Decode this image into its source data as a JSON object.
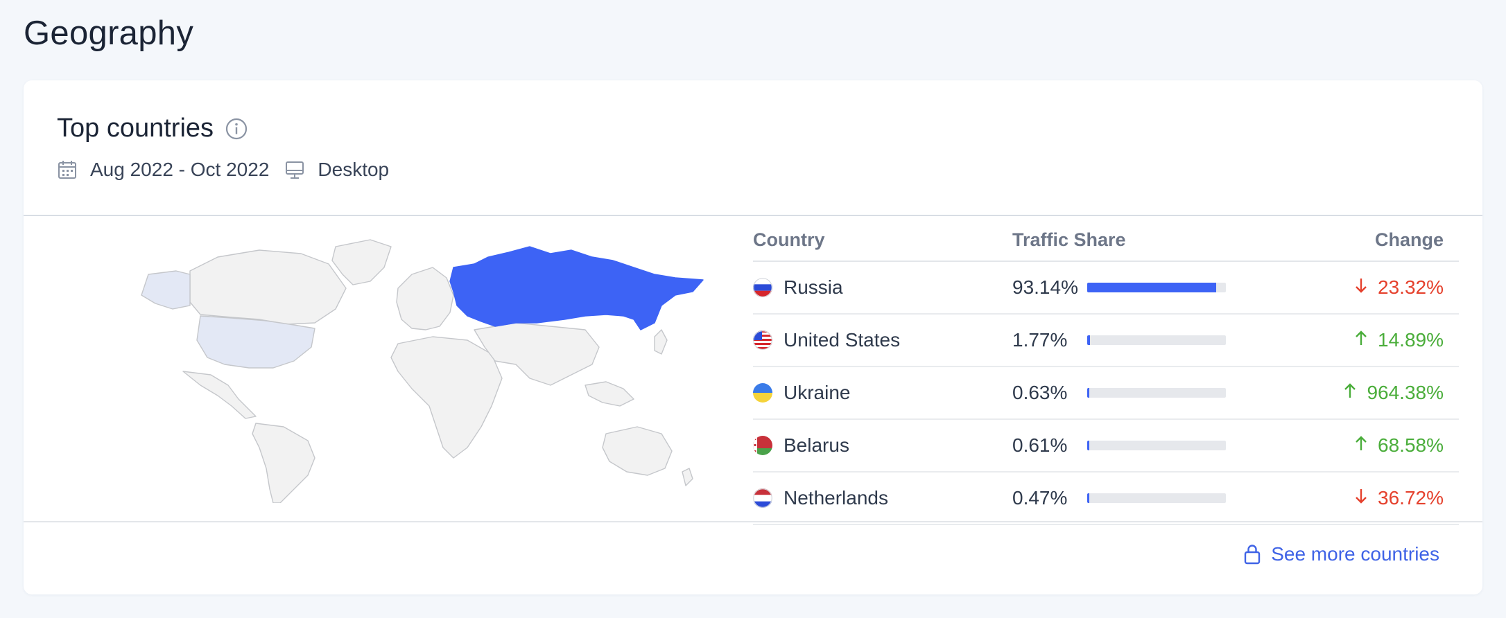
{
  "page": {
    "title": "Geography"
  },
  "card": {
    "title": "Top countries",
    "date_range": "Aug 2022 - Oct 2022",
    "device": "Desktop",
    "see_more": "See more countries"
  },
  "table": {
    "headers": {
      "country": "Country",
      "share": "Traffic Share",
      "change": "Change"
    },
    "rows": [
      {
        "country": "Russia",
        "share": "93.14%",
        "share_fraction": 0.9314,
        "change": "23.32%",
        "direction": "down"
      },
      {
        "country": "United States",
        "share": "1.77%",
        "share_fraction": 0.0177,
        "change": "14.89%",
        "direction": "up"
      },
      {
        "country": "Ukraine",
        "share": "0.63%",
        "share_fraction": 0.0063,
        "change": "964.38%",
        "direction": "up"
      },
      {
        "country": "Belarus",
        "share": "0.61%",
        "share_fraction": 0.0061,
        "change": "68.58%",
        "direction": "up"
      },
      {
        "country": "Netherlands",
        "share": "0.47%",
        "share_fraction": 0.0047,
        "change": "36.72%",
        "direction": "down"
      }
    ]
  },
  "colors": {
    "accent": "#3d63f5",
    "up": "#4aad3a",
    "down": "#e5412d",
    "map_land": "#f2f2f2",
    "map_highlight_light": "#e3e8f5"
  },
  "icons": {
    "info": "info-icon",
    "calendar": "calendar-icon",
    "desktop": "desktop-icon",
    "lock": "lock-icon",
    "arrow_up": "arrow-up-icon",
    "arrow_down": "arrow-down-icon"
  }
}
